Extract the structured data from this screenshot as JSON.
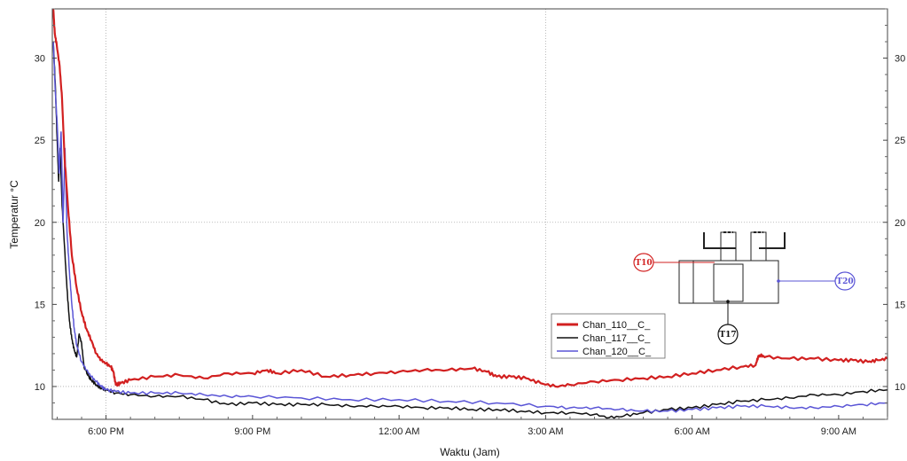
{
  "chart_data": {
    "type": "line",
    "xlabel": "Waktu (Jam)",
    "ylabel": "Temperatur °C",
    "x_unit": "hours",
    "xlim": [
      16.9,
      34.0
    ],
    "ylim": [
      8.0,
      33.0
    ],
    "x_ticks": [
      {
        "x": 18,
        "label": "6:00 PM"
      },
      {
        "x": 21,
        "label": "9:00 PM"
      },
      {
        "x": 24,
        "label": "12:00 AM"
      },
      {
        "x": 27,
        "label": "3:00 AM"
      },
      {
        "x": 30,
        "label": "6:00 AM"
      },
      {
        "x": 33,
        "label": "9:00 AM"
      }
    ],
    "y_ticks": [
      10,
      15,
      20,
      25,
      30
    ],
    "grid_x": [
      18,
      27
    ],
    "grid_y": [
      10,
      20
    ],
    "legend_position": "center-right",
    "series": [
      {
        "name": "Chan_110__C_",
        "color": "#d22020",
        "x": [
          16.92,
          16.95,
          16.99,
          17.05,
          17.1,
          17.15,
          17.22,
          17.3,
          17.4,
          17.5,
          17.6,
          17.7,
          17.8,
          17.9,
          18.0,
          18.1,
          18.15,
          18.2,
          18.3,
          18.5,
          19.0,
          19.5,
          20.0,
          20.5,
          21.0,
          21.3,
          21.5,
          22.0,
          22.5,
          23.0,
          23.5,
          24.0,
          24.5,
          25.0,
          25.5,
          25.8,
          26.0,
          26.3,
          26.6,
          26.9,
          27.2,
          27.5,
          28.0,
          28.5,
          29.0,
          29.5,
          30.0,
          30.5,
          31.0,
          31.3,
          31.35,
          31.4,
          31.5,
          32.0,
          32.5,
          33.0,
          33.3,
          33.6,
          33.8,
          34.0
        ],
        "y": [
          33.0,
          31.5,
          30.8,
          29.5,
          27.5,
          24.0,
          21.0,
          18.0,
          16.0,
          14.5,
          13.5,
          12.8,
          12.0,
          11.6,
          11.4,
          11.2,
          10.9,
          10.1,
          10.2,
          10.4,
          10.6,
          10.7,
          10.5,
          10.8,
          10.8,
          11.0,
          10.8,
          11.0,
          10.6,
          10.7,
          10.8,
          10.9,
          11.0,
          11.0,
          11.1,
          10.9,
          10.6,
          10.6,
          10.5,
          10.2,
          10.0,
          10.1,
          10.3,
          10.4,
          10.5,
          10.6,
          10.8,
          11.0,
          11.2,
          11.3,
          11.8,
          11.9,
          11.8,
          11.7,
          11.7,
          11.6,
          11.6,
          11.5,
          11.6,
          11.7
        ]
      },
      {
        "name": "Chan_117__C_",
        "color": "#111111",
        "x": [
          16.92,
          16.96,
          17.0,
          17.03,
          17.06,
          17.1,
          17.15,
          17.2,
          17.25,
          17.3,
          17.35,
          17.4,
          17.45,
          17.5,
          17.55,
          17.6,
          17.65,
          17.7,
          17.8,
          17.9,
          18.0,
          18.2,
          18.5,
          19.0,
          19.5,
          20.0,
          20.5,
          21.0,
          21.5,
          22.0,
          22.5,
          23.0,
          23.5,
          24.0,
          24.5,
          25.0,
          25.5,
          26.0,
          26.5,
          27.0,
          27.5,
          28.0,
          28.3,
          28.6,
          29.0,
          29.5,
          30.0,
          30.5,
          31.0,
          31.5,
          32.0,
          32.5,
          33.0,
          33.5,
          34.0
        ],
        "y": [
          31.0,
          28.5,
          25.0,
          22.5,
          24.5,
          21.0,
          18.5,
          16.0,
          14.0,
          12.9,
          12.2,
          11.8,
          13.2,
          12.6,
          11.2,
          10.9,
          10.6,
          10.4,
          10.1,
          9.9,
          9.8,
          9.6,
          9.5,
          9.4,
          9.4,
          9.2,
          8.9,
          9.0,
          8.9,
          8.9,
          8.9,
          8.8,
          8.8,
          8.8,
          8.7,
          8.7,
          8.6,
          8.6,
          8.5,
          8.4,
          8.4,
          8.3,
          8.1,
          8.2,
          8.4,
          8.6,
          8.7,
          8.9,
          9.1,
          9.2,
          9.3,
          9.5,
          9.5,
          9.7,
          9.8
        ]
      },
      {
        "name": "Chan_120__C_",
        "color": "#5a55d6",
        "x": [
          16.92,
          16.96,
          17.0,
          17.04,
          17.08,
          17.12,
          17.16,
          17.2,
          17.25,
          17.3,
          17.35,
          17.4,
          17.5,
          17.6,
          17.7,
          17.8,
          17.9,
          18.0,
          18.2,
          18.5,
          19.0,
          19.5,
          20.0,
          20.5,
          21.0,
          22.0,
          23.0,
          24.0,
          25.0,
          26.0,
          27.0,
          27.5,
          28.0,
          28.5,
          29.0,
          29.5,
          30.0,
          30.5,
          31.0,
          31.5,
          32.0,
          32.5,
          33.0,
          33.5,
          34.0
        ],
        "y": [
          31.0,
          28.0,
          26.0,
          23.0,
          25.5,
          20.0,
          24.5,
          19.5,
          17.0,
          15.0,
          13.5,
          12.5,
          11.5,
          11.0,
          10.6,
          10.3,
          10.0,
          9.8,
          9.7,
          9.6,
          9.6,
          9.6,
          9.5,
          9.4,
          9.4,
          9.3,
          9.2,
          9.2,
          9.1,
          9.0,
          8.8,
          8.7,
          8.7,
          8.6,
          8.5,
          8.5,
          8.6,
          8.7,
          8.8,
          8.8,
          8.7,
          8.7,
          8.8,
          8.9,
          9.0
        ]
      }
    ]
  },
  "inset": {
    "sensors": [
      {
        "label": "T10",
        "color": "#d22020"
      },
      {
        "label": "T17",
        "color": "#111111"
      },
      {
        "label": "T20",
        "color": "#5a55d6"
      }
    ]
  }
}
